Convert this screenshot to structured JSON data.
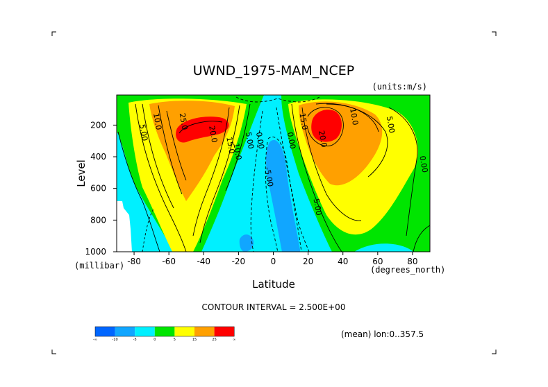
{
  "chart_data": {
    "type": "contour",
    "title": "UWND_1975-MAM_NCEP",
    "units": "(units:m/s)",
    "xlabel": "Latitude",
    "xunits": "(degrees_north)",
    "ylabel": "Level",
    "yunits": "(millibar)",
    "xlim": [
      -90,
      90
    ],
    "ylim": [
      1000,
      10
    ],
    "y_reversed": true,
    "xticks": [
      -80,
      -60,
      -40,
      -20,
      0,
      20,
      40,
      60,
      80
    ],
    "xtick_labels": [
      "-80",
      "-60",
      "-40",
      "-20",
      "0",
      "20",
      "40",
      "60",
      "80"
    ],
    "yticks": [
      200,
      400,
      600,
      800,
      1000
    ],
    "ytick_labels": [
      "200",
      "400",
      "600",
      "800",
      "1000"
    ],
    "contour_interval_text": "CONTOUR INTERVAL = 2.500E+00",
    "mean_text": "(mean) lon:0..357.5",
    "jets": [
      {
        "name": "southern hemisphere jet",
        "lat": -40,
        "level": 200,
        "max": 28,
        "label": "25.0"
      },
      {
        "name": "northern hemisphere jet",
        "lat": 30,
        "level": 200,
        "max": 35,
        "label": "25.0"
      }
    ],
    "contour_labels": [
      {
        "text": "10.0",
        "lat": -68,
        "level": 180
      },
      {
        "text": "5.00",
        "lat": -76,
        "level": 250
      },
      {
        "text": "25.0",
        "lat": -53,
        "level": 180
      },
      {
        "text": "20.0",
        "lat": -36,
        "level": 260
      },
      {
        "text": "15.0",
        "lat": -26,
        "level": 330
      },
      {
        "text": "10.0",
        "lat": -22,
        "level": 370
      },
      {
        "text": "5.00",
        "lat": -15,
        "level": 300
      },
      {
        "text": "0.00",
        "lat": -9,
        "level": 300
      },
      {
        "text": "-5.00",
        "lat": -4,
        "level": 530
      },
      {
        "text": "0.00",
        "lat": 9,
        "level": 300
      },
      {
        "text": "15.0",
        "lat": 16,
        "level": 180
      },
      {
        "text": "10.0",
        "lat": 45,
        "level": 150
      },
      {
        "text": "20.0",
        "lat": 27,
        "level": 290
      },
      {
        "text": "5.00",
        "lat": 66,
        "level": 200
      },
      {
        "text": "5.00",
        "lat": 24,
        "level": 720
      },
      {
        "text": "0.00",
        "lat": 85,
        "level": 450
      }
    ],
    "colorbar": {
      "colors": [
        "#0066ff",
        "#11a6ff",
        "#00f0ff",
        "#00e500",
        "#ffff00",
        "#ffa000",
        "#ff0000"
      ],
      "labels": [
        "-∞",
        "-10",
        "-5",
        "0",
        "5",
        "15",
        "25",
        "∞"
      ]
    }
  }
}
